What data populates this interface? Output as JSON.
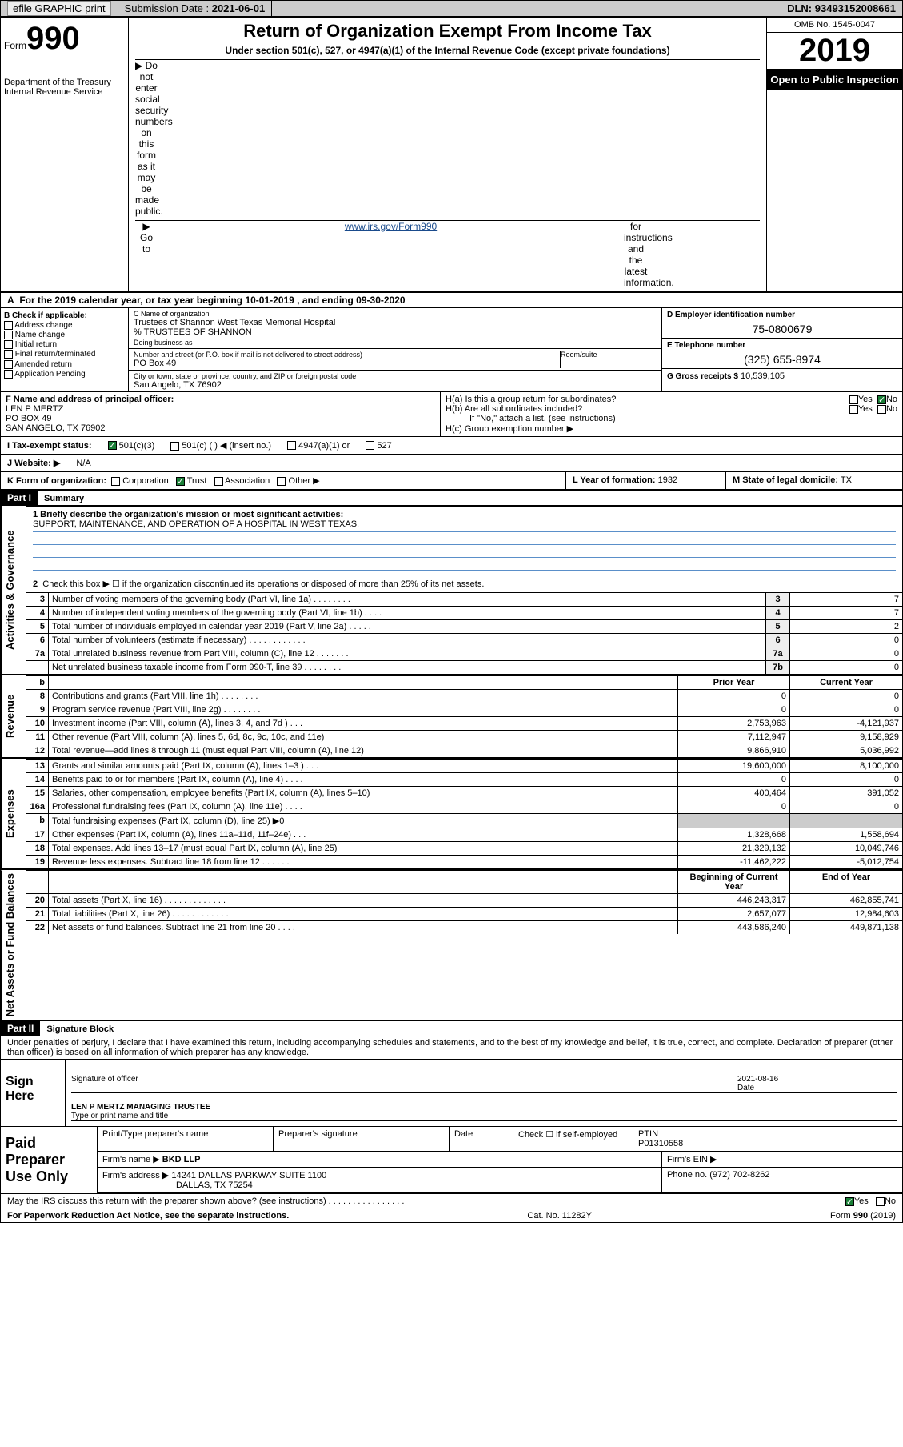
{
  "topbar": {
    "efile": "efile GRAPHIC print",
    "sub_label": "Submission Date :",
    "sub_date": "2021-06-01",
    "dln_label": "DLN:",
    "dln": "93493152008661"
  },
  "header": {
    "form_word": "Form",
    "form_num": "990",
    "dept": "Department of the Treasury\nInternal Revenue Service",
    "title": "Return of Organization Exempt From Income Tax",
    "sub": "Under section 501(c), 527, or 4947(a)(1) of the Internal Revenue Code (except private foundations)",
    "line1": "▶ Do not enter social security numbers on this form as it may be made public.",
    "line2_pre": "▶ Go to ",
    "line2_link": "www.irs.gov/Form990",
    "line2_post": " for instructions and the latest information.",
    "omb": "OMB No. 1545-0047",
    "year": "2019",
    "pub": "Open to Public Inspection"
  },
  "rowA": "For the 2019 calendar year, or tax year beginning 10-01-2019    , and ending 09-30-2020",
  "rowA_lbl": "A",
  "checkB": {
    "label": "B Check if applicable:",
    "items": [
      "Address change",
      "Name change",
      "Initial return",
      "Final return/terminated",
      "Amended return",
      "Application Pending"
    ]
  },
  "C": {
    "lbl": "C Name of organization",
    "name": "Trustees of Shannon West Texas Memorial Hospital",
    "care": "% TRUSTEES OF SHANNON",
    "dba_lbl": "Doing business as",
    "addr_lbl": "Number and street (or P.O. box if mail is not delivered to street address)",
    "room_lbl": "Room/suite",
    "addr": "PO Box 49",
    "city_lbl": "City or town, state or province, country, and ZIP or foreign postal code",
    "city": "San Angelo, TX  76902"
  },
  "D": {
    "lbl": "D Employer identification number",
    "val": "75-0800679"
  },
  "E": {
    "lbl": "E Telephone number",
    "val": "(325) 655-8974"
  },
  "G": {
    "lbl": "G Gross receipts $",
    "val": "10,539,105"
  },
  "F": {
    "lbl": "F Name and address of principal officer:",
    "name": "LEN P MERTZ",
    "addr1": "PO BOX 49",
    "addr2": "SAN ANGELO, TX  76902"
  },
  "H": {
    "a": "H(a)  Is this a group return for subordinates?",
    "b": "H(b)  Are all subordinates included?",
    "b_note": "If \"No,\" attach a list. (see instructions)",
    "c": "H(c)  Group exemption number ▶",
    "yes": "Yes",
    "no": "No"
  },
  "I": {
    "lbl": "I  Tax-exempt status:",
    "opts": [
      "501(c)(3)",
      "501(c) (  ) ◀ (insert no.)",
      "4947(a)(1) or",
      "527"
    ]
  },
  "J": {
    "lbl": "J  Website: ▶",
    "val": "N/A"
  },
  "K": {
    "lbl": "K Form of organization:",
    "opts": [
      "Corporation",
      "Trust",
      "Association",
      "Other ▶"
    ]
  },
  "L": {
    "lbl": "L Year of formation:",
    "val": "1932"
  },
  "M": {
    "lbl": "M State of legal domicile:",
    "val": "TX"
  },
  "part1": {
    "badge": "Part I",
    "title": "Summary"
  },
  "summary": {
    "l1_lbl": "1  Briefly describe the organization's mission or most significant activities:",
    "l1_val": "SUPPORT, MAINTENANCE, AND OPERATION OF A HOSPITAL IN WEST TEXAS.",
    "l2": "Check this box ▶ ☐  if the organization discontinued its operations or disposed of more than 25% of its net assets."
  },
  "tabs": {
    "gov": "Activities & Governance",
    "rev": "Revenue",
    "exp": "Expenses",
    "net": "Net Assets or Fund Balances"
  },
  "cols": {
    "prior": "Prior Year",
    "curr": "Current Year",
    "beg": "Beginning of Current Year",
    "end": "End of Year"
  },
  "lines_gov": [
    {
      "n": "3",
      "d": "Number of voting members of the governing body (Part VI, line 1a)   .    .    .    .    .    .    .    .",
      "ln": "3",
      "v": "7"
    },
    {
      "n": "4",
      "d": "Number of independent voting members of the governing body (Part VI, line 1b)   .    .    .    .",
      "ln": "4",
      "v": "7"
    },
    {
      "n": "5",
      "d": "Total number of individuals employed in calendar year 2019 (Part V, line 2a)   .    .    .    .    .",
      "ln": "5",
      "v": "2"
    },
    {
      "n": "6",
      "d": "Total number of volunteers (estimate if necessary)   .    .    .    .    .    .    .    .    .    .    .    .",
      "ln": "6",
      "v": "0"
    },
    {
      "n": "7a",
      "d": "Total unrelated business revenue from Part VIII, column (C), line 12   .    .    .    .    .    .    .",
      "ln": "7a",
      "v": "0"
    },
    {
      "n": "",
      "d": "Net unrelated business taxable income from Form 990-T, line 39   .    .    .    .    .    .    .    .",
      "ln": "7b",
      "v": "0"
    }
  ],
  "lines_rev": [
    {
      "n": "8",
      "d": "Contributions and grants (Part VIII, line 1h)   .    .    .    .    .    .    .    .",
      "p": "0",
      "c": "0"
    },
    {
      "n": "9",
      "d": "Program service revenue (Part VIII, line 2g)   .    .    .    .    .    .    .    .",
      "p": "0",
      "c": "0"
    },
    {
      "n": "10",
      "d": "Investment income (Part VIII, column (A), lines 3, 4, and 7d )   .    .    .",
      "p": "2,753,963",
      "c": "-4,121,937"
    },
    {
      "n": "11",
      "d": "Other revenue (Part VIII, column (A), lines 5, 6d, 8c, 9c, 10c, and 11e)",
      "p": "7,112,947",
      "c": "9,158,929"
    },
    {
      "n": "12",
      "d": "Total revenue—add lines 8 through 11 (must equal Part VIII, column (A), line 12)",
      "p": "9,866,910",
      "c": "5,036,992"
    }
  ],
  "lines_exp": [
    {
      "n": "13",
      "d": "Grants and similar amounts paid (Part IX, column (A), lines 1–3 )   .    .    .",
      "p": "19,600,000",
      "c": "8,100,000"
    },
    {
      "n": "14",
      "d": "Benefits paid to or for members (Part IX, column (A), line 4)   .    .    .    .",
      "p": "0",
      "c": "0"
    },
    {
      "n": "15",
      "d": "Salaries, other compensation, employee benefits (Part IX, column (A), lines 5–10)",
      "p": "400,464",
      "c": "391,052"
    },
    {
      "n": "16a",
      "d": "Professional fundraising fees (Part IX, column (A), line 11e)   .    .    .    .",
      "p": "0",
      "c": "0"
    },
    {
      "n": "b",
      "d": "Total fundraising expenses (Part IX, column (D), line 25) ▶0",
      "p": "",
      "c": "",
      "shade": true
    },
    {
      "n": "17",
      "d": "Other expenses (Part IX, column (A), lines 11a–11d, 11f–24e)   .    .    .",
      "p": "1,328,668",
      "c": "1,558,694"
    },
    {
      "n": "18",
      "d": "Total expenses. Add lines 13–17 (must equal Part IX, column (A), line 25)",
      "p": "21,329,132",
      "c": "10,049,746"
    },
    {
      "n": "19",
      "d": "Revenue less expenses. Subtract line 18 from line 12   .    .    .    .    .    .",
      "p": "-11,462,222",
      "c": "-5,012,754"
    }
  ],
  "lines_net": [
    {
      "n": "20",
      "d": "Total assets (Part X, line 16)   .    .    .    .    .    .    .    .    .    .    .    .    .",
      "p": "446,243,317",
      "c": "462,855,741"
    },
    {
      "n": "21",
      "d": "Total liabilities (Part X, line 26)   .    .    .    .    .    .    .    .    .    .    .    .",
      "p": "2,657,077",
      "c": "12,984,603"
    },
    {
      "n": "22",
      "d": "Net assets or fund balances. Subtract line 21 from line 20   .    .    .    .",
      "p": "443,586,240",
      "c": "449,871,138"
    }
  ],
  "part2": {
    "badge": "Part II",
    "title": "Signature Block"
  },
  "sig": {
    "decl": "Under penalties of perjury, I declare that I have examined this return, including accompanying schedules and statements, and to the best of my knowledge and belief, it is true, correct, and complete. Declaration of preparer (other than officer) is based on all information of which preparer has any knowledge.",
    "here": "Sign Here",
    "sig_of": "Signature of officer",
    "date": "Date",
    "date_val": "2021-08-16",
    "name": "LEN P MERTZ MANAGING TRUSTEE",
    "type": "Type or print name and title"
  },
  "prep": {
    "lbl": "Paid Preparer Use Only",
    "h": [
      "Print/Type preparer's name",
      "Preparer's signature",
      "Date",
      "Check ☐ if self-employed",
      "PTIN"
    ],
    "ptin": "P01310558",
    "firm_lbl": "Firm's name    ▶",
    "firm": "BKD LLP",
    "ein_lbl": "Firm's EIN ▶",
    "addr_lbl": "Firm's address ▶",
    "addr1": "14241 DALLAS PARKWAY SUITE 1100",
    "addr2": "DALLAS, TX  75254",
    "phone_lbl": "Phone no.",
    "phone": "(972) 702-8262",
    "discuss": "May the IRS discuss this return with the preparer shown above? (see instructions)    .    .    .    .    .    .    .    .    .    .    .    .    .    .    .    ."
  },
  "footer": {
    "left": "For Paperwork Reduction Act Notice, see the separate instructions.",
    "mid": "Cat. No. 11282Y",
    "right": "Form 990 (2019)"
  },
  "colors": {
    "link": "#1a4b8c",
    "rule_blue": "#5a8fc9",
    "check_green": "#1a7f37"
  }
}
